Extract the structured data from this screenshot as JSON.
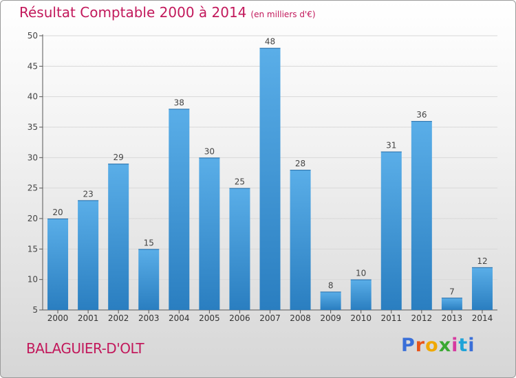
{
  "header": {
    "title": "Résultat Comptable 2000 à 2014",
    "subtitle": "(en milliers d'€)"
  },
  "footer": {
    "commune": "BALAGUIER-D'OLT",
    "brand": "Proxiti",
    "brand_letters": [
      "P",
      "r",
      "o",
      "x",
      "i",
      "t",
      "i"
    ]
  },
  "colors": {
    "title": "#c2185b",
    "bar_top": "#5aaee8",
    "bar_bottom": "#2a7ec0"
  },
  "chart_data": {
    "type": "bar",
    "title": "Résultat Comptable 2000 à 2014",
    "subtitle": "(en milliers d'€)",
    "xlabel": "",
    "ylabel": "",
    "categories": [
      "2000",
      "2001",
      "2002",
      "2003",
      "2004",
      "2005",
      "2006",
      "2007",
      "2008",
      "2009",
      "2010",
      "2011",
      "2012",
      "2013",
      "2014"
    ],
    "values": [
      20,
      23,
      29,
      15,
      38,
      30,
      25,
      48,
      28,
      8,
      10,
      31,
      36,
      7,
      12
    ],
    "ylim": [
      5,
      50
    ],
    "yticks": [
      5,
      10,
      15,
      20,
      25,
      30,
      35,
      40,
      45,
      50
    ],
    "grid": true
  }
}
